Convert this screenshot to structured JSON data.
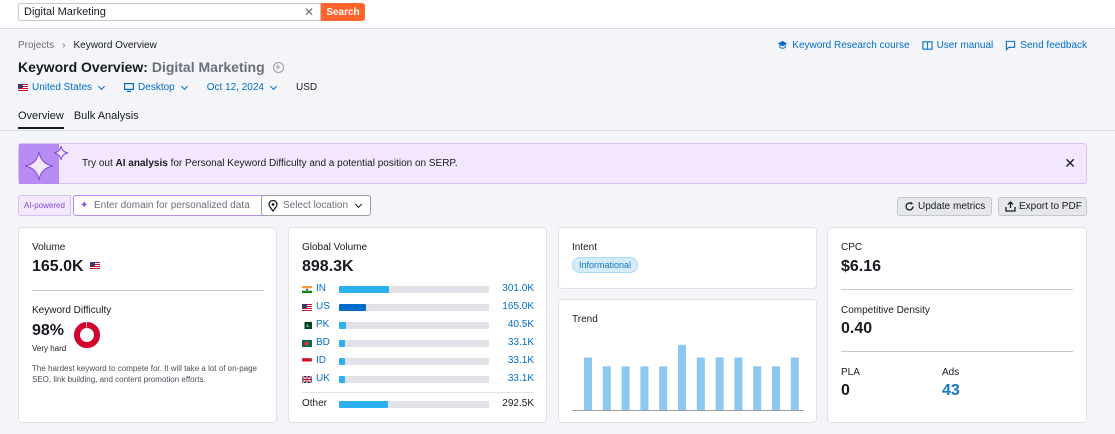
{
  "search": {
    "value": "Digital Marketing",
    "button": "Search"
  },
  "breadcrumb": [
    "Projects",
    "Keyword Overview"
  ],
  "top_links": {
    "course": "Keyword Research course",
    "manual": "User manual",
    "feedback": "Send feedback"
  },
  "title": {
    "prefix": "Keyword Overview:",
    "keyword": "Digital Marketing"
  },
  "filters": {
    "country": "United States",
    "device": "Desktop",
    "date": "Oct 12, 2024",
    "currency": "USD"
  },
  "tabs": [
    "Overview",
    "Bulk Analysis"
  ],
  "banner": {
    "pre": "Try out ",
    "bold": "AI analysis",
    "post": " for Personal Keyword Difficulty and a potential position on SERP."
  },
  "ai": {
    "badge": "AI-powered",
    "placeholder": "Enter domain for personalized data",
    "location": "Select location"
  },
  "actions": {
    "update": "Update metrics",
    "export": "Export to PDF"
  },
  "volume": {
    "label": "Volume",
    "value": "165.0K"
  },
  "kd": {
    "label": "Keyword Difficulty",
    "value": "98%",
    "level": "Very hard",
    "percent": 98,
    "desc": "The hardest keyword to compete for. It will take a lot of on-page SEO, link building, and content promotion efforts."
  },
  "global": {
    "label": "Global Volume",
    "value": "898.3K",
    "countries": [
      {
        "code": "IN",
        "value": "301.0K",
        "share": 0.335
      },
      {
        "code": "US",
        "value": "165.0K",
        "share": 0.184
      },
      {
        "code": "PK",
        "value": "40.5K",
        "share": 0.045
      },
      {
        "code": "BD",
        "value": "33.1K",
        "share": 0.037
      },
      {
        "code": "ID",
        "value": "33.1K",
        "share": 0.037
      },
      {
        "code": "UK",
        "value": "33.1K",
        "share": 0.037
      }
    ],
    "other": {
      "label": "Other",
      "value": "292.5K",
      "share": 0.326
    }
  },
  "intent": {
    "label": "Intent",
    "badge": "Informational"
  },
  "trend": {
    "label": "Trend",
    "values": [
      0.71,
      0.59,
      0.59,
      0.59,
      0.59,
      0.88,
      0.71,
      0.71,
      0.71,
      0.59,
      0.59,
      0.71,
      0.71
    ]
  },
  "cpc": {
    "label": "CPC",
    "value": "$6.16"
  },
  "density": {
    "label": "Competitive Density",
    "value": "0.40"
  },
  "pla": {
    "label": "PLA",
    "value": "0"
  },
  "ads": {
    "label": "Ads",
    "value": "43"
  },
  "colors": {
    "accent": "#ff642d",
    "link": "#006dca",
    "bar": "#2bb1ef",
    "trend": "#8cc8ef",
    "kd": "#d1002f"
  }
}
